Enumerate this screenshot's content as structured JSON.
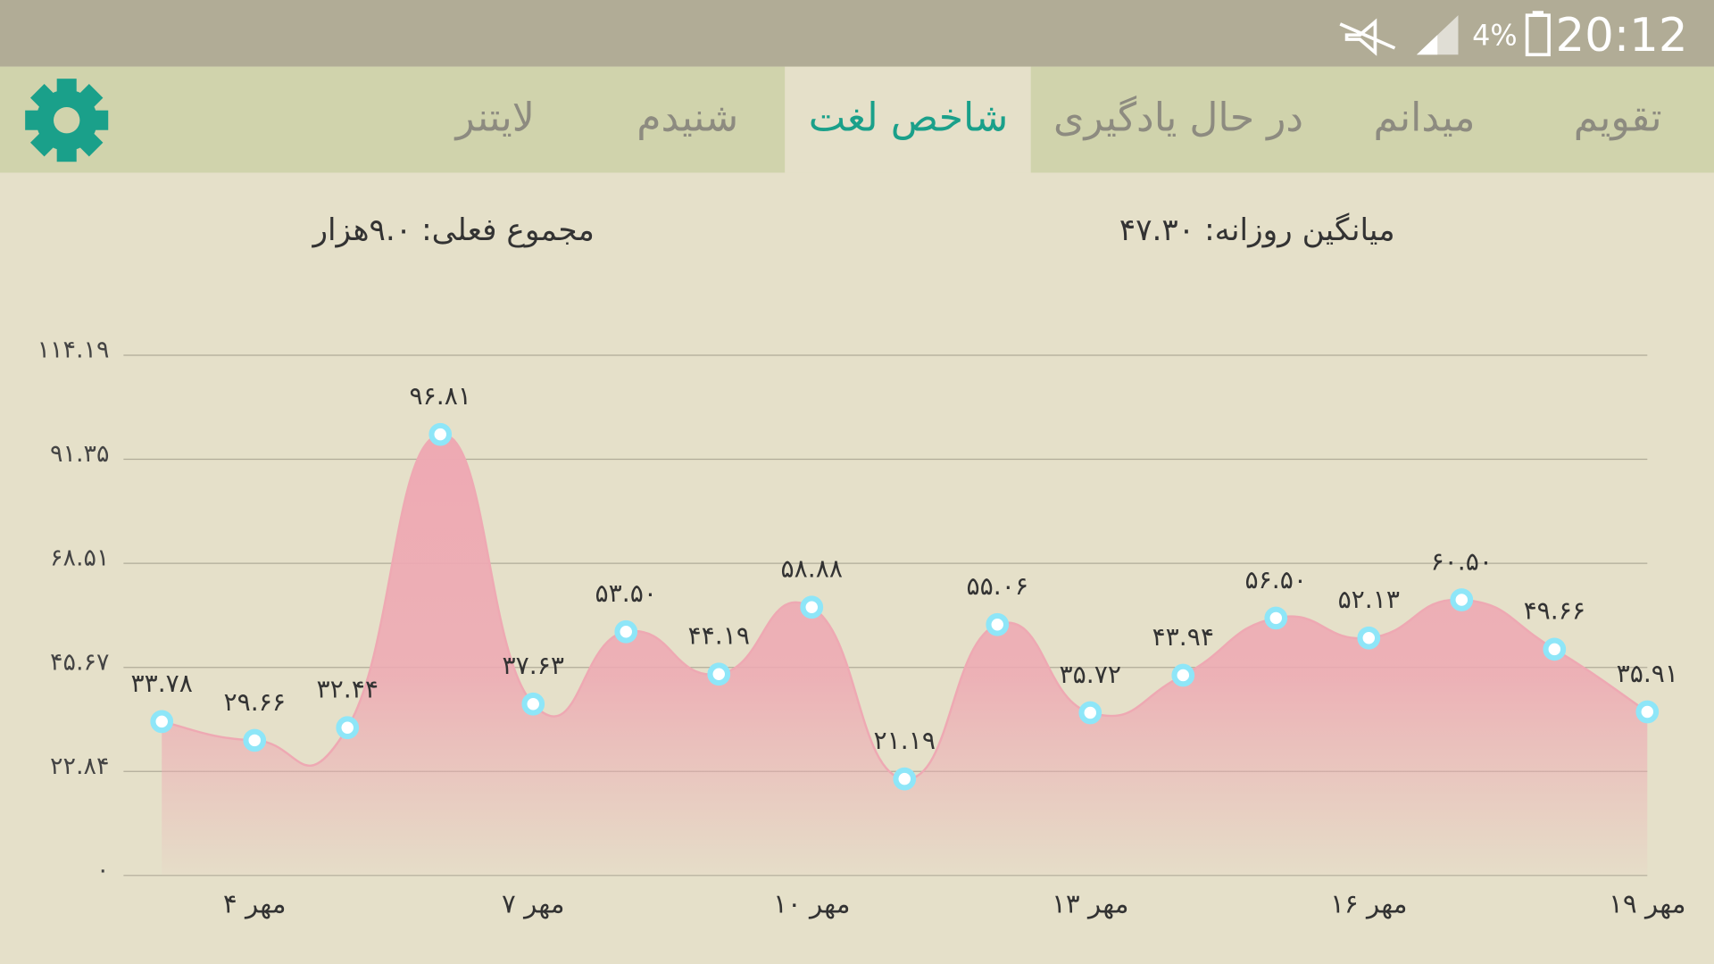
{
  "status_bar": {
    "battery": "4%",
    "time": "20:12"
  },
  "tabs": [
    "تقویم",
    "میدانم",
    "در حال یادگیری",
    "شاخص لغت",
    "شنیدم",
    "لایتنر"
  ],
  "summary": {
    "daily_average": "میانگین روزانه: ۴۷.۳۰",
    "current_total": "مجموع فعلی: ۹.۰هزار"
  },
  "chart_data": {
    "type": "area",
    "categories": [
      null,
      "۴ مهر",
      null,
      null,
      "۷ مهر",
      null,
      null,
      "۱۰ مهر",
      null,
      null,
      "۱۳ مهر",
      null,
      null,
      "۱۶ مهر",
      null,
      null,
      "۱۹ مهر"
    ],
    "values": [
      33.78,
      29.66,
      32.44,
      96.81,
      37.63,
      53.5,
      44.19,
      58.88,
      21.19,
      55.06,
      35.72,
      43.94,
      56.5,
      52.13,
      60.5,
      49.66,
      35.91
    ],
    "value_labels": [
      "۳۳.۷۸",
      "۲۹.۶۶",
      "۳۲.۴۴",
      "۹۶.۸۱",
      "۳۷.۶۳",
      "۵۳.۵۰",
      "۴۴.۱۹",
      "۵۸.۸۸",
      "۲۱.۱۹",
      "۵۵.۰۶",
      "۳۵.۷۲",
      "۴۳.۹۴",
      "۵۶.۵۰",
      "۵۲.۱۳",
      "۶۰.۵۰",
      "۴۹.۶۶",
      "۳۵.۹۱"
    ],
    "color": "#eea9b3",
    "marker_color": "#8ee6f8",
    "ylim": [
      0,
      114.19
    ],
    "yticks": [
      {
        "value": 0,
        "label": "۰"
      },
      {
        "value": 22.84,
        "label": "۲۲.۸۴"
      },
      {
        "value": 45.67,
        "label": "۴۵.۶۷"
      },
      {
        "value": 68.51,
        "label": "۶۸.۵۱"
      },
      {
        "value": 91.35,
        "label": "۹۱.۳۵"
      },
      {
        "value": 114.19,
        "label": "۱۱۴.۱۹"
      }
    ],
    "grid": true
  }
}
